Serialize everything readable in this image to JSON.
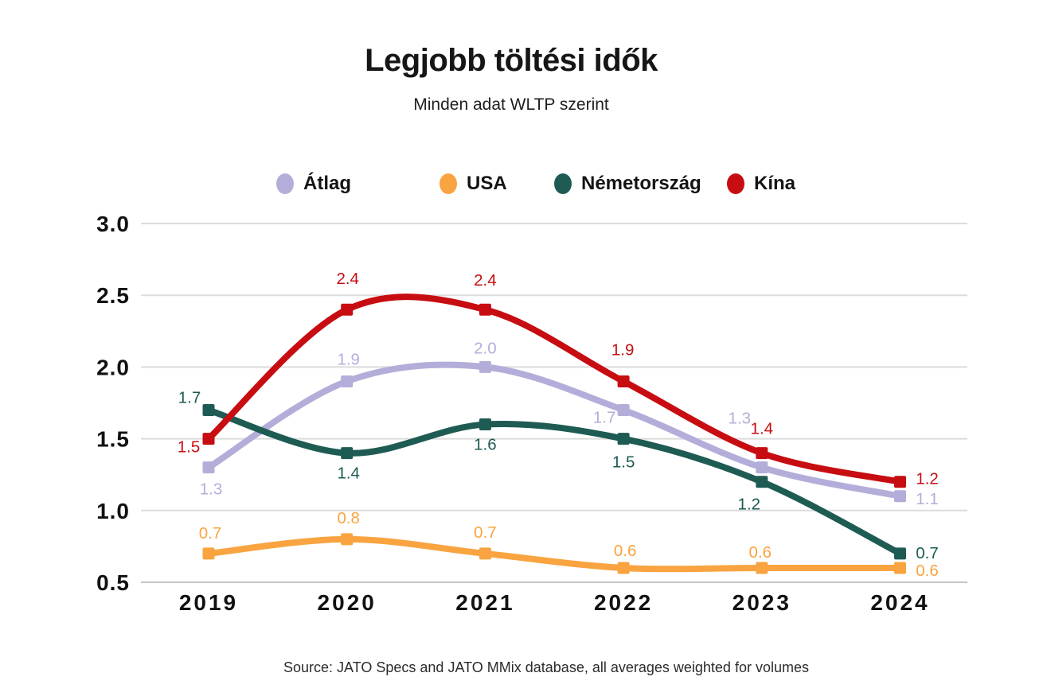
{
  "header": {
    "title": "Legjobb töltési idők",
    "subtitle": "Minden adat WLTP szerint"
  },
  "legend": {
    "position": "top",
    "items": [
      {
        "label": "Átlag",
        "color": "#B3AED9"
      },
      {
        "label": "USA",
        "color": "#F9A440"
      },
      {
        "label": "Németország",
        "color": "#1E5B53"
      },
      {
        "label": "Kína",
        "color": "#C70D11"
      }
    ]
  },
  "chart_data": {
    "type": "line",
    "x": [
      "2019",
      "2020",
      "2021",
      "2022",
      "2023",
      "2024"
    ],
    "y_ticks": [
      "3.0",
      "2.5",
      "2.0",
      "1.5",
      "1.0",
      "0.5"
    ],
    "ylim": [
      0.5,
      3.0
    ],
    "grid": true,
    "line_style": "smooth",
    "marker": "square",
    "title": "Legjobb töltési idők",
    "subtitle": "Minden adat WLTP szerint",
    "xlabel": "",
    "ylabel": "",
    "series": [
      {
        "name": "Átlag",
        "color": "#B3AED9",
        "values": [
          1.3,
          1.9,
          2.0,
          1.7,
          1.3,
          1.1
        ],
        "label_offsets": [
          [
            3,
            27
          ],
          [
            2,
            -28
          ],
          [
            0,
            -24
          ],
          [
            -24,
            9
          ],
          [
            -28,
            -62
          ],
          [
            34,
            3
          ]
        ]
      },
      {
        "name": "USA",
        "color": "#F9A440",
        "values": [
          0.7,
          0.8,
          0.7,
          0.6,
          0.6,
          0.6
        ],
        "label_offsets": [
          [
            2,
            -26
          ],
          [
            2,
            -27
          ],
          [
            0,
            -27
          ],
          [
            2,
            -22
          ],
          [
            -2,
            -20
          ],
          [
            34,
            3
          ]
        ]
      },
      {
        "name": "Németország",
        "color": "#1E5B53",
        "values": [
          1.7,
          1.4,
          1.6,
          1.5,
          1.2,
          0.7
        ],
        "label_offsets": [
          [
            -24,
            -16
          ],
          [
            2,
            25
          ],
          [
            0,
            25
          ],
          [
            0,
            29
          ],
          [
            -16,
            28
          ],
          [
            34,
            -1
          ]
        ]
      },
      {
        "name": "Kína",
        "color": "#C70D11",
        "values": [
          1.5,
          2.4,
          2.4,
          1.9,
          1.4,
          1.2
        ],
        "label_offsets": [
          [
            -25,
            10
          ],
          [
            1,
            -39
          ],
          [
            0,
            -37
          ],
          [
            -1,
            -40
          ],
          [
            0,
            -31
          ],
          [
            34,
            -4
          ]
        ]
      }
    ]
  },
  "source": {
    "text": "Source: JATO Specs and JATO MMix database, all averages weighted for volumes"
  },
  "colors": {
    "background": "#FFFFFF",
    "grid": "#DCDCDC",
    "axis_bottom": "#C6C6C6",
    "tick_label": "#111111",
    "title": "#161616",
    "subtitle": "#1F1F1F",
    "source": "#2B2B2B"
  }
}
